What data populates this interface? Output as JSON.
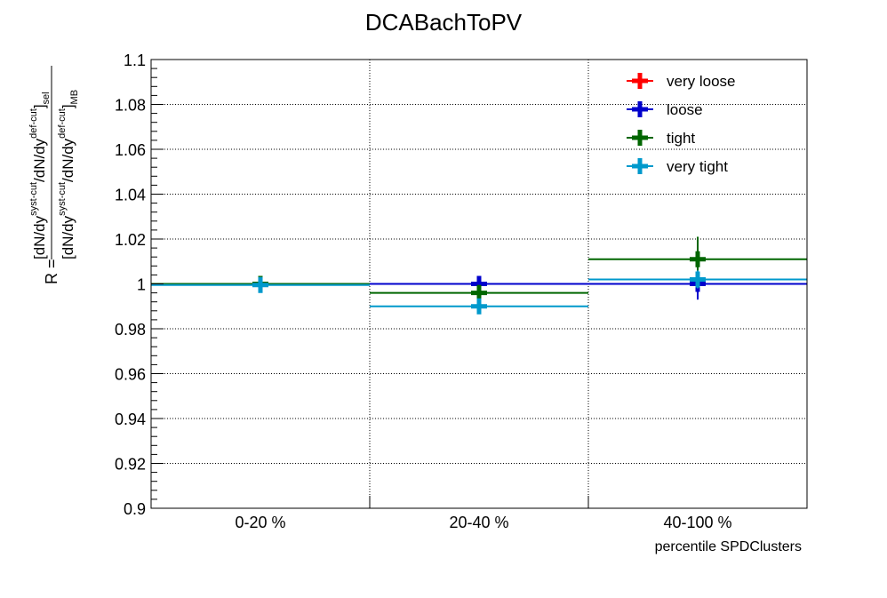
{
  "chart_data": {
    "type": "scatter",
    "title": "DCABachToPV",
    "xlabel": "percentile SPDClusters",
    "ylabel": {
      "prefix": "R = ",
      "numerator": {
        "open": "[dN/dy",
        "sup1": "syst-cut",
        "mid": "/dN/dy",
        "sup2": "def-cut",
        "close": "]",
        "sub": "sel"
      },
      "denominator": {
        "open": "[dN/dy",
        "sup1": "syst-cut",
        "mid": "/dN/dy",
        "sup2": "def-cut",
        "close": "]",
        "sub": "MB"
      }
    },
    "categories": [
      "0-20 %",
      "20-40 %",
      "40-100 %"
    ],
    "ylim": [
      0.9,
      1.1
    ],
    "yticks": [
      "0.9",
      "0.92",
      "0.94",
      "0.96",
      "0.98",
      "1",
      "1.02",
      "1.04",
      "1.06",
      "1.08",
      "1.1"
    ],
    "grid": true,
    "legend_position": "top-right",
    "series": [
      {
        "name": "very loose",
        "color": "#ff0000",
        "values": [
          1.0,
          1.0,
          1.0
        ],
        "errors": [
          0.0015,
          0.0015,
          0.0015
        ]
      },
      {
        "name": "loose",
        "color": "#0000cc",
        "values": [
          1.0,
          1.0,
          1.0
        ],
        "errors": [
          0.003,
          0.003,
          0.007
        ]
      },
      {
        "name": "tight",
        "color": "#006600",
        "values": [
          1.0,
          0.996,
          1.011
        ],
        "errors": [
          0.002,
          0.0025,
          0.01
        ]
      },
      {
        "name": "very tight",
        "color": "#0099cc",
        "values": [
          0.9995,
          0.99,
          1.002
        ],
        "errors": [
          0.0025,
          0.0025,
          0.004
        ]
      }
    ]
  }
}
